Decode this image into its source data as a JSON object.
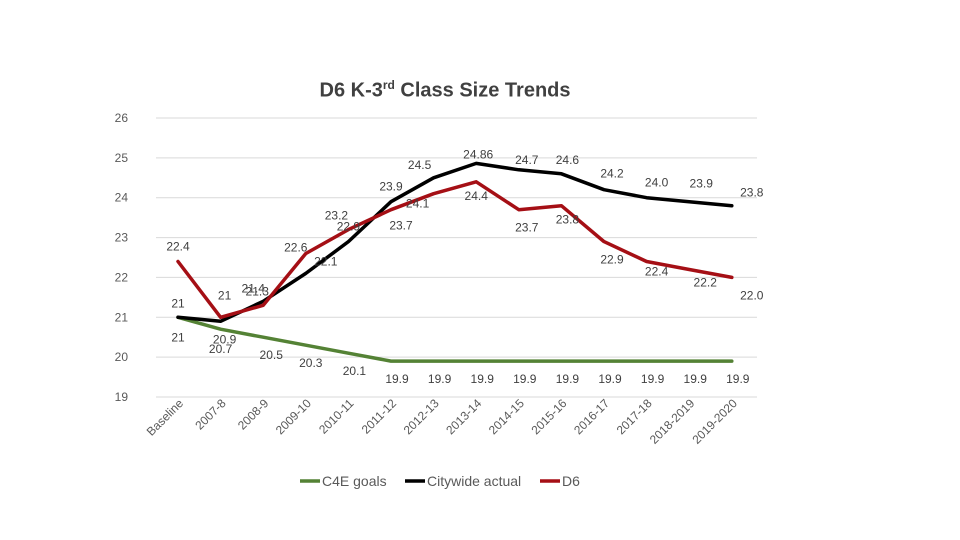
{
  "chart_data": {
    "type": "line",
    "title_main": "D6 K-3",
    "title_sup": "rd",
    "title_rest": " Class Size Trends",
    "categories": [
      "Baseline",
      "2007-8",
      "2008-9",
      "2009-10",
      "2010-11",
      "2011-12",
      "2012-13",
      "2013-14",
      "2014-15",
      "2015-16",
      "2016-17",
      "2017-18",
      "2018-2019",
      "2019-2020"
    ],
    "ylim": [
      19,
      26
    ],
    "yticks": [
      "19",
      "20",
      "21",
      "22",
      "23",
      "24",
      "25",
      "26"
    ],
    "grid": true,
    "legend_position": "bottom",
    "series": [
      {
        "name": "C4E goals",
        "color": "#548235",
        "values": [
          21,
          20.7,
          20.5,
          20.3,
          20.1,
          19.9,
          19.9,
          19.9,
          19.9,
          19.9,
          19.9,
          19.9,
          19.9,
          19.9
        ],
        "labels": [
          "21",
          "20.7",
          "20.5",
          "20.3",
          "20.1",
          "19.9",
          "19.9",
          "19.9",
          "19.9",
          "19.9",
          "19.9",
          "19.9",
          "19.9",
          "19.9"
        ]
      },
      {
        "name": "Citywide actual",
        "color": "#000000",
        "values": [
          21,
          20.9,
          21.4,
          22.1,
          22.9,
          23.9,
          24.5,
          24.86,
          24.7,
          24.6,
          24.2,
          24.0,
          23.9,
          23.8
        ],
        "labels": [
          "21",
          "20.9",
          "21.4",
          "22.1",
          "22.9",
          "23.9",
          "24.5",
          "24.86",
          "24.7",
          "24.6",
          "24.2",
          "24.0",
          "23.9",
          "23.8"
        ]
      },
      {
        "name": "D6",
        "color": "#A50F15",
        "values": [
          22.4,
          21,
          21.3,
          22.6,
          23.2,
          23.7,
          24.1,
          24.4,
          23.7,
          23.8,
          22.9,
          22.4,
          22.2,
          22.0
        ],
        "labels": [
          "22.4",
          "21",
          "21.3",
          "22.6",
          "23.2",
          "23.7",
          "24.1",
          "24.4",
          "23.7",
          "23.8",
          "22.9",
          "22.4",
          "22.2",
          "22.0"
        ]
      }
    ]
  }
}
